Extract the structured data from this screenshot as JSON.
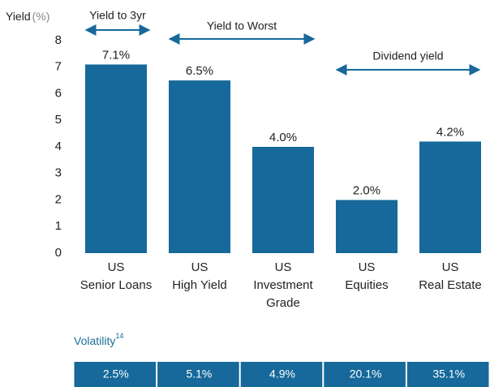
{
  "chart_data": {
    "type": "bar",
    "y_label": "Yield",
    "y_unit": "(%)",
    "categories": [
      [
        "US",
        "Senior Loans"
      ],
      [
        "US",
        "High Yield"
      ],
      [
        "US",
        "Investment",
        "Grade"
      ],
      [
        "US",
        "Equities"
      ],
      [
        "US",
        "Real Estate"
      ]
    ],
    "values": [
      7.1,
      6.5,
      4.0,
      2.0,
      4.2
    ],
    "value_labels": [
      "7.1%",
      "6.5%",
      "4.0%",
      "2.0%",
      "4.2%"
    ],
    "color": "#16699a",
    "ylim": [
      0,
      8
    ],
    "yticks": [
      0,
      1,
      2,
      3,
      4,
      5,
      6,
      7,
      8
    ],
    "grid": false,
    "annotations": [
      "Yield to 3yr",
      "Yield to Worst",
      "Dividend yield"
    ]
  },
  "volatility_table": {
    "title": "Volatility",
    "superscript": "14",
    "cells": [
      "2.5%",
      "5.1%",
      "4.9%",
      "20.1%",
      "35.1%"
    ]
  }
}
